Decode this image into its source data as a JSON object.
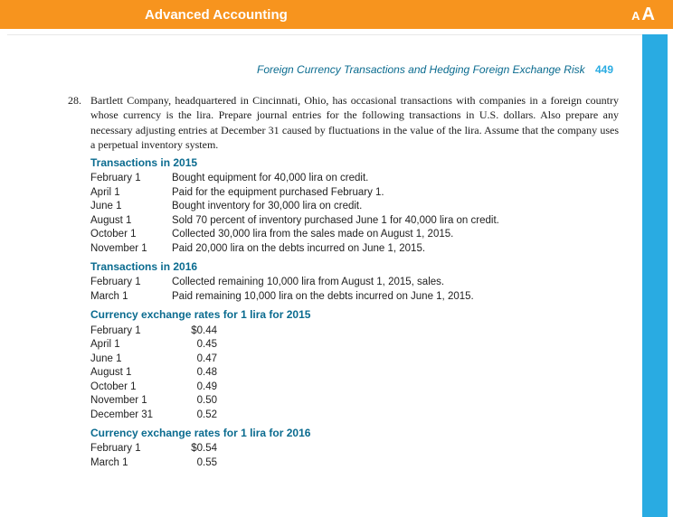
{
  "topbar": {
    "title": "Advanced Accounting"
  },
  "running_head": {
    "text": "Foreign Currency Transactions and Hedging Foreign Exchange Risk",
    "page_number": "449"
  },
  "problem": {
    "number": "28.",
    "intro": "Bartlett Company, headquartered in Cincinnati, Ohio, has occasional transactions with companies in a foreign country whose currency is the lira. Prepare journal entries for the following transactions in U.S. dollars. Also prepare any necessary adjusting entries at December 31 caused by fluctuations in the value of the lira. Assume that the company uses a perpetual inventory system."
  },
  "sections": {
    "tx2015_head": "Transactions in 2015",
    "tx2015": [
      {
        "date": "February 1",
        "desc": "Bought equipment for 40,000 lira on credit."
      },
      {
        "date": "April 1",
        "desc": "Paid for the equipment purchased February 1."
      },
      {
        "date": "June 1",
        "desc": "Bought inventory for 30,000 lira on credit."
      },
      {
        "date": "August 1",
        "desc": "Sold 70 percent of inventory purchased June 1 for 40,000 lira on credit."
      },
      {
        "date": "October 1",
        "desc": "Collected 30,000 lira from the sales made on August 1, 2015."
      },
      {
        "date": "November 1",
        "desc": "Paid 20,000 lira on the debts incurred on June 1, 2015."
      }
    ],
    "tx2016_head": "Transactions in 2016",
    "tx2016": [
      {
        "date": "February 1",
        "desc": "Collected remaining 10,000 lira from August 1, 2015, sales."
      },
      {
        "date": "March 1",
        "desc": "Paid remaining 10,000 lira on the debts incurred on June 1, 2015."
      }
    ],
    "rates2015_head": "Currency exchange rates for 1 lira for 2015",
    "rates2015": [
      {
        "date": "February 1",
        "rate": "$0.44"
      },
      {
        "date": "April 1",
        "rate": "0.45"
      },
      {
        "date": "June 1",
        "rate": "0.47"
      },
      {
        "date": "August 1",
        "rate": "0.48"
      },
      {
        "date": "October 1",
        "rate": "0.49"
      },
      {
        "date": "November 1",
        "rate": "0.50"
      },
      {
        "date": "December 31",
        "rate": "0.52"
      }
    ],
    "rates2016_head": "Currency exchange rates for 1 lira for 2016",
    "rates2016": [
      {
        "date": "February 1",
        "rate": "$0.54"
      },
      {
        "date": "March 1",
        "rate": "0.55"
      }
    ]
  },
  "colors": {
    "topbar_bg": "#f7941e",
    "sidebar_bg": "#29abe2",
    "heading_color": "#0a6b8f",
    "text_color": "#1a1a1a"
  },
  "fonts": {
    "body_family": "Georgia, serif",
    "ui_family": "Arial, sans-serif",
    "body_size_pt": 12,
    "table_size_pt": 11.5,
    "topbar_title_pt": 15
  }
}
